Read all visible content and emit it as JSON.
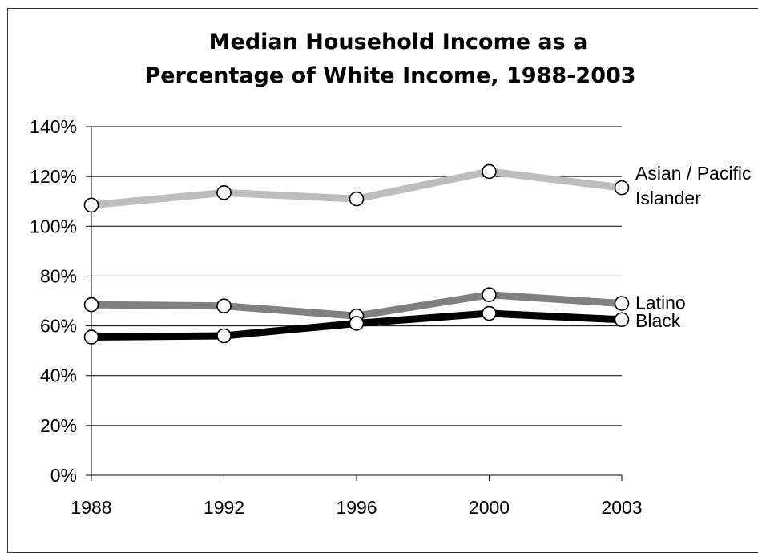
{
  "chart_data": {
    "type": "line",
    "title_lines": [
      "Median Household Income as a",
      "Percentage of White Income, 1988-2003"
    ],
    "x": [
      "1988",
      "1992",
      "1996",
      "2000",
      "2003"
    ],
    "ylim": [
      0,
      140
    ],
    "yticks": [
      0,
      20,
      40,
      60,
      80,
      100,
      120,
      140
    ],
    "ytick_labels": [
      "0%",
      "20%",
      "40%",
      "60%",
      "80%",
      "100%",
      "120%",
      "140%"
    ],
    "grid": true,
    "legend": "inline labels at right end of lines",
    "series": [
      {
        "name_lines": [
          "Asian / Pacific",
          "Islander"
        ],
        "values": [
          108.5,
          113.5,
          111,
          122,
          115.5
        ],
        "color": "#bdbdbd"
      },
      {
        "name_lines": [
          "Latino"
        ],
        "values": [
          68.5,
          68,
          64,
          72.5,
          69
        ],
        "color": "#808080"
      },
      {
        "name_lines": [
          "Black"
        ],
        "values": [
          55.5,
          56,
          61,
          65,
          62.5
        ],
        "color": "#000000"
      }
    ]
  }
}
